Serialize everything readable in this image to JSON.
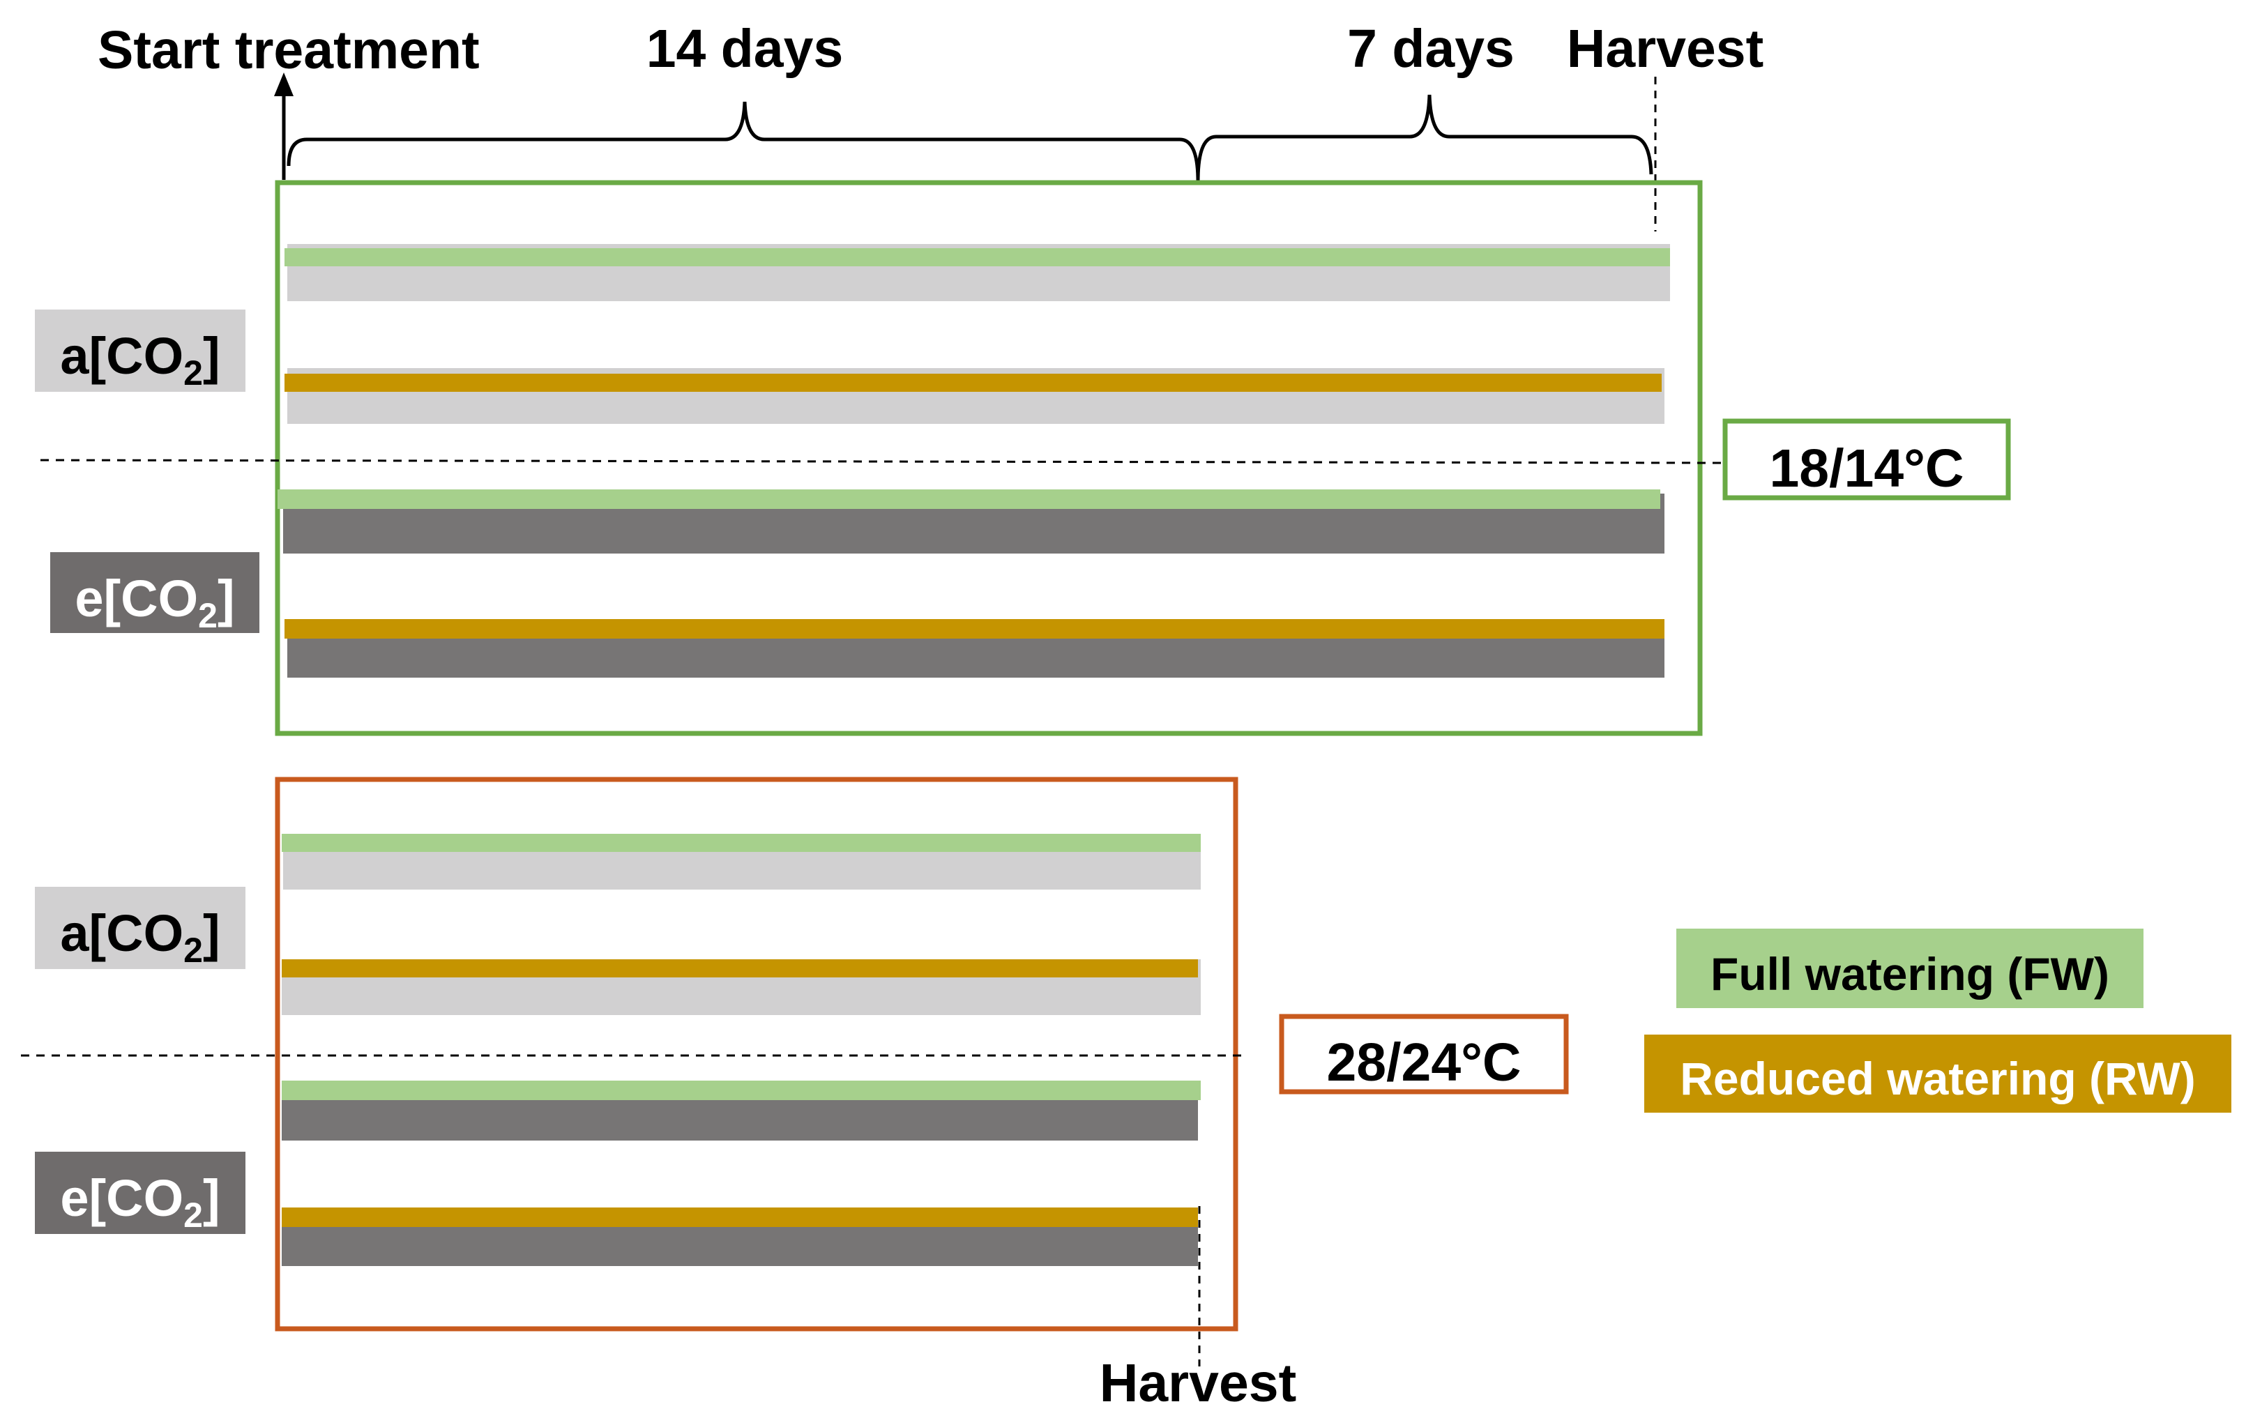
{
  "timeline": {
    "start_label": "Start treatment",
    "period1_label": "14 days",
    "period2_label": "7 days",
    "harvest_top_label": "Harvest",
    "harvest_bottom_label": "Harvest"
  },
  "groups": {
    "cool": {
      "temperature_label": "18/14°C",
      "frame_color": "#6aaa45",
      "co2_labels": [
        {
          "prefix": "a[CO",
          "sub": "2",
          "suffix": "]"
        },
        {
          "prefix": "e[CO",
          "sub": "2",
          "suffix": "]"
        }
      ]
    },
    "warm": {
      "temperature_label": "28/24°C",
      "frame_color": "#c85a1e",
      "co2_labels": [
        {
          "prefix": "a[CO",
          "sub": "2",
          "suffix": "]"
        },
        {
          "prefix": "e[CO",
          "sub": "2",
          "suffix": "]"
        }
      ]
    }
  },
  "legend": {
    "fw_label": "Full watering (FW)",
    "rw_label": "Reduced watering (RW)"
  },
  "colors": {
    "fw": "#a6d08c",
    "rw": "#c59400",
    "ambient": "#d1d0d1",
    "elevated": "#777575",
    "elevated_dark": "#6f6c6c",
    "rw_legend_text": "#ffffff",
    "fw_legend_text": "#000000"
  }
}
